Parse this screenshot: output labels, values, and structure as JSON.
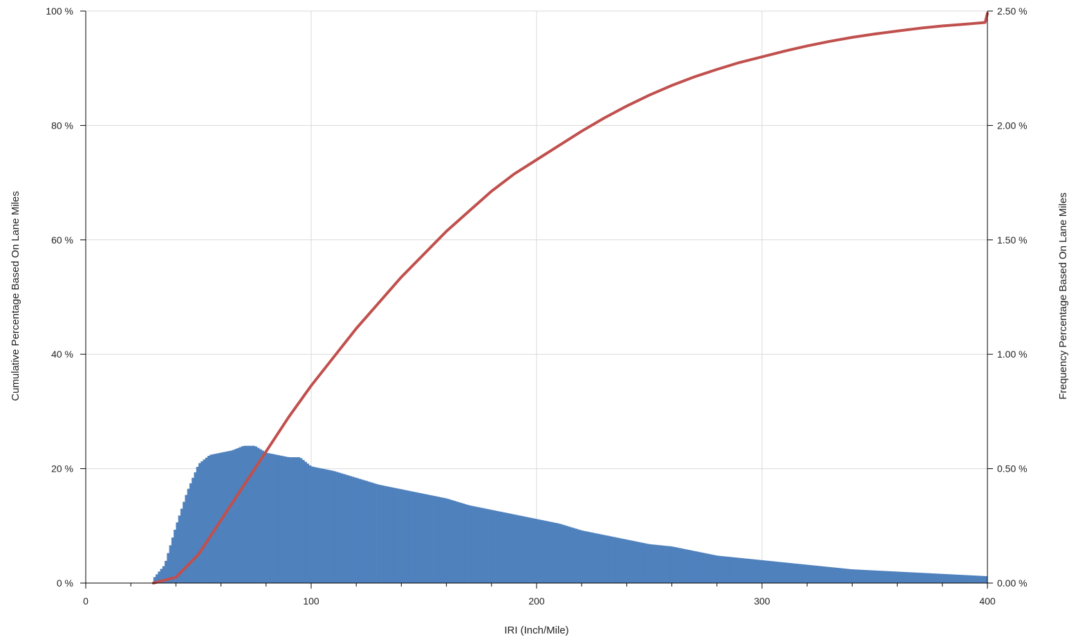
{
  "chart_data": {
    "type": "bar",
    "title": "",
    "xlabel": "IRI (Inch/Mile)",
    "ylabel_left": "Cumulative Percentage Based On Lane Miles",
    "ylabel_right": "Frequency Percentage Based On Lane Miles",
    "xlim": [
      0,
      400
    ],
    "ylim_left": [
      0,
      100
    ],
    "ylim_right": [
      0,
      2.5
    ],
    "x_ticks": [
      0,
      100,
      200,
      300,
      400
    ],
    "x_tick_labels": [
      "0",
      "100",
      "200",
      "300",
      "400"
    ],
    "x_minor_tick_step": 20,
    "y_left_ticks": [
      0,
      20,
      40,
      60,
      80,
      100
    ],
    "y_left_tick_labels": [
      "0 %",
      "20 %",
      "40 %",
      "60 %",
      "80 %",
      "100 %"
    ],
    "y_right_ticks": [
      0,
      0.5,
      1.0,
      1.5,
      2.0,
      2.5
    ],
    "y_right_tick_labels": [
      "0.00 %",
      "0.50 %",
      "1.00 %",
      "1.50 %",
      "2.00 %",
      "2.50 %"
    ],
    "grid": true,
    "legend": "none",
    "bin_width": 1,
    "series": [
      {
        "kind": "histogram",
        "axis": "right",
        "color": "#4f81bd",
        "x": [
          30,
          35,
          40,
          45,
          50,
          55,
          60,
          65,
          70,
          75,
          80,
          85,
          90,
          95,
          100,
          110,
          120,
          130,
          140,
          150,
          160,
          170,
          180,
          190,
          200,
          210,
          220,
          230,
          240,
          250,
          260,
          270,
          280,
          290,
          300,
          320,
          340,
          360,
          380,
          400
        ],
        "values": [
          0.02,
          0.08,
          0.25,
          0.4,
          0.52,
          0.56,
          0.57,
          0.58,
          0.6,
          0.6,
          0.57,
          0.56,
          0.55,
          0.55,
          0.51,
          0.49,
          0.46,
          0.43,
          0.41,
          0.39,
          0.37,
          0.34,
          0.32,
          0.3,
          0.28,
          0.26,
          0.23,
          0.21,
          0.19,
          0.17,
          0.16,
          0.14,
          0.12,
          0.11,
          0.1,
          0.08,
          0.06,
          0.05,
          0.04,
          0.03
        ]
      },
      {
        "kind": "line",
        "axis": "left",
        "color": "#c0504d",
        "x": [
          30,
          40,
          50,
          60,
          70,
          80,
          90,
          100,
          110,
          120,
          130,
          140,
          150,
          160,
          170,
          180,
          190,
          200,
          210,
          220,
          230,
          240,
          250,
          260,
          270,
          280,
          290,
          300,
          310,
          320,
          330,
          340,
          350,
          360,
          370,
          380,
          390,
          399,
          400
        ],
        "values": [
          0,
          1,
          5,
          11,
          17,
          23,
          29,
          34.5,
          39.5,
          44.5,
          49,
          53.5,
          57.5,
          61.5,
          65,
          68.5,
          71.5,
          74,
          76.5,
          79,
          81.3,
          83.4,
          85.3,
          87,
          88.5,
          89.8,
          91,
          92,
          93,
          93.9,
          94.7,
          95.4,
          96,
          96.5,
          97,
          97.4,
          97.7,
          98,
          99.6
        ]
      }
    ]
  }
}
